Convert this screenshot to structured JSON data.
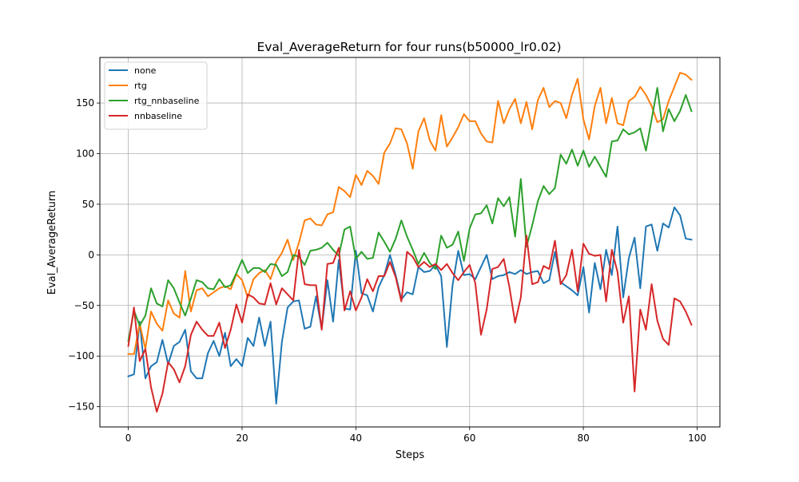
{
  "chart_data": {
    "type": "line",
    "title": "Eval_AverageReturn for four runs(b50000_lr0.02)",
    "xlabel": "Steps",
    "ylabel": "Eval_AverageReturn",
    "xlim": [
      -5,
      104
    ],
    "ylim": [
      -170,
      195
    ],
    "xticks": [
      0,
      20,
      40,
      60,
      80,
      100
    ],
    "yticks": [
      -150,
      -100,
      -50,
      0,
      50,
      100,
      150
    ],
    "grid": true,
    "legend_position": "top-left",
    "x": [
      0,
      1,
      2,
      3,
      4,
      5,
      6,
      7,
      8,
      9,
      10,
      11,
      12,
      13,
      14,
      15,
      16,
      17,
      18,
      19,
      20,
      21,
      22,
      23,
      24,
      25,
      26,
      27,
      28,
      29,
      30,
      31,
      32,
      33,
      34,
      35,
      36,
      37,
      38,
      39,
      40,
      41,
      42,
      43,
      44,
      45,
      46,
      47,
      48,
      49,
      50,
      51,
      52,
      53,
      54,
      55,
      56,
      57,
      58,
      59,
      60,
      61,
      62,
      63,
      64,
      65,
      66,
      67,
      68,
      69,
      70,
      71,
      72,
      73,
      74,
      75,
      76,
      77,
      78,
      79,
      80,
      81,
      82,
      83,
      84,
      85,
      86,
      87,
      88,
      89,
      90,
      91,
      92,
      93,
      94,
      95,
      96,
      97,
      98,
      99
    ],
    "series": [
      {
        "name": "none",
        "color": "#1f77b4",
        "values": [
          -120,
          -118,
          -66,
          -122,
          -110,
          -106,
          -84,
          -108,
          -90,
          -86,
          -74,
          -115,
          -122,
          -122,
          -97,
          -85,
          -100,
          -77,
          -110,
          -103,
          -110,
          -82,
          -90,
          -62,
          -90,
          -66,
          -147,
          -86,
          -52,
          -46,
          -45,
          -73,
          -71,
          -41,
          -73,
          -25,
          -66,
          -5,
          -53,
          -54,
          4,
          -38,
          -40,
          -56,
          -32,
          -20,
          0,
          -20,
          -44,
          -37,
          -39,
          -12,
          -17,
          -16,
          -10,
          -21,
          -91,
          -30,
          4,
          -20,
          -19,
          -24,
          -12,
          0,
          -24,
          -21,
          -20,
          -17,
          -19,
          -15,
          -19,
          -17,
          -16,
          -28,
          -25,
          3,
          -27,
          -31,
          -35,
          -40,
          -12,
          -57,
          -8,
          -34,
          5,
          -20,
          28,
          -42,
          -3,
          17,
          -33,
          28,
          30,
          4,
          31,
          27,
          47,
          39,
          16,
          15
        ]
      },
      {
        "name": "rtg",
        "color": "#ff7f0e",
        "values": [
          -98,
          -98,
          -68,
          -93,
          -56,
          -68,
          -75,
          -45,
          -58,
          -62,
          -16,
          -56,
          -35,
          -33,
          -41,
          -37,
          -33,
          -31,
          -34,
          -19,
          -25,
          -42,
          -24,
          -18,
          -15,
          -24,
          -7,
          2,
          15,
          -5,
          12,
          34,
          36,
          30,
          29,
          40,
          42,
          67,
          63,
          57,
          79,
          69,
          83,
          78,
          70,
          101,
          110,
          125,
          124,
          110,
          85,
          122,
          135,
          113,
          103,
          138,
          107,
          116,
          126,
          139,
          132,
          132,
          120,
          112,
          111,
          152,
          130,
          144,
          154,
          130,
          151,
          124,
          153,
          165,
          146,
          152,
          150,
          135,
          158,
          174,
          134,
          114,
          147,
          165,
          130,
          155,
          130,
          128,
          152,
          156,
          166,
          158,
          147,
          131,
          134,
          152,
          166,
          180,
          178,
          173
        ]
      },
      {
        "name": "rtg_nnbaseline",
        "color": "#2ca02c",
        "values": [
          -85,
          -55,
          -70,
          -60,
          -33,
          -48,
          -51,
          -25,
          -33,
          -47,
          -60,
          -43,
          -25,
          -27,
          -33,
          -34,
          -24,
          -32,
          -30,
          -18,
          -5,
          -18,
          -13,
          -13,
          -17,
          -9,
          -10,
          -21,
          -17,
          0,
          -2,
          -10,
          4,
          5,
          7,
          12,
          5,
          -1,
          25,
          28,
          -4,
          3,
          -4,
          -3,
          22,
          13,
          3,
          16,
          34,
          18,
          5,
          -9,
          2,
          -8,
          -14,
          19,
          7,
          10,
          23,
          -6,
          26,
          40,
          41,
          49,
          31,
          56,
          48,
          57,
          18,
          75,
          8,
          29,
          53,
          68,
          60,
          66,
          99,
          90,
          104,
          88,
          103,
          87,
          97,
          87,
          77,
          112,
          113,
          124,
          119,
          121,
          125,
          103,
          134,
          165,
          122,
          144,
          132,
          142,
          158,
          142
        ]
      },
      {
        "name": "nnbaseline",
        "color": "#d62728",
        "values": [
          -90,
          -52,
          -105,
          -93,
          -131,
          -155,
          -137,
          -106,
          -113,
          -126,
          -110,
          -79,
          -66,
          -74,
          -80,
          -80,
          -67,
          -92,
          -74,
          -49,
          -67,
          -39,
          -42,
          -48,
          -49,
          -28,
          -49,
          -33,
          -39,
          -45,
          5,
          -29,
          -30,
          -30,
          -74,
          -9,
          -8,
          7,
          -55,
          -36,
          -55,
          -42,
          -24,
          -36,
          -21,
          -21,
          -7,
          -22,
          -46,
          3,
          -2,
          -12,
          -7,
          -12,
          -9,
          -15,
          -9,
          -18,
          -25,
          -17,
          -10,
          -28,
          -79,
          -54,
          -14,
          -12,
          -4,
          -32,
          -67,
          -42,
          19,
          -29,
          -27,
          -11,
          -14,
          14,
          -29,
          -20,
          5,
          -36,
          11,
          1,
          -1,
          0,
          -46,
          5,
          -17,
          -67,
          -41,
          -135,
          -54,
          -74,
          -29,
          -65,
          -83,
          -89,
          -43,
          -46,
          -56,
          -69
        ]
      }
    ]
  }
}
